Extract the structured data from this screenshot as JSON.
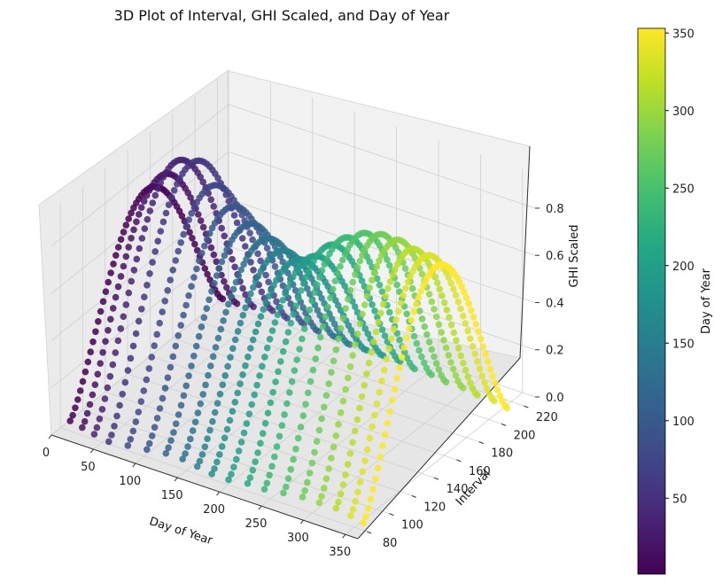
{
  "chart_data": {
    "type": "scatter",
    "title": "3D Plot of Interval, GHI Scaled, and Day of Year",
    "xlabel": "Day of Year",
    "ylabel": "Interval",
    "zlabel": "GHI Scaled",
    "colorbar_label": "Day of Year",
    "colormap": "viridis",
    "grid": true,
    "xlim": [
      0,
      365
    ],
    "ylim": [
      72,
      230
    ],
    "zlim": [
      0,
      0.95
    ],
    "clim": [
      1,
      353
    ],
    "x_ticks": [
      "0",
      "50",
      "100",
      "150",
      "200",
      "250",
      "300",
      "350"
    ],
    "y_ticks": [
      "80",
      "100",
      "120",
      "140",
      "160",
      "180",
      "200",
      "220"
    ],
    "z_ticks": [
      "0.0",
      "0.2",
      "0.4",
      "0.6",
      "0.8"
    ],
    "colorbar_ticks": [
      "50",
      "100",
      "150",
      "200",
      "250",
      "300",
      "350"
    ],
    "series": [
      {
        "day": 1,
        "start": 88,
        "end": 224,
        "peak": 0.72
      },
      {
        "day": 18,
        "start": 86,
        "end": 224,
        "peak": 0.8
      },
      {
        "day": 35,
        "start": 84,
        "end": 226,
        "peak": 0.88
      },
      {
        "day": 55,
        "start": 82,
        "end": 228,
        "peak": 0.9
      },
      {
        "day": 75,
        "start": 84,
        "end": 226,
        "peak": 0.82
      },
      {
        "day": 95,
        "start": 86,
        "end": 226,
        "peak": 0.75
      },
      {
        "day": 115,
        "start": 88,
        "end": 224,
        "peak": 0.7
      },
      {
        "day": 135,
        "start": 88,
        "end": 224,
        "peak": 0.66
      },
      {
        "day": 155,
        "start": 86,
        "end": 222,
        "peak": 0.64
      },
      {
        "day": 175,
        "start": 84,
        "end": 222,
        "peak": 0.63
      },
      {
        "day": 195,
        "start": 84,
        "end": 222,
        "peak": 0.67
      },
      {
        "day": 215,
        "start": 86,
        "end": 222,
        "peak": 0.74
      },
      {
        "day": 235,
        "start": 86,
        "end": 220,
        "peak": 0.8
      },
      {
        "day": 255,
        "start": 88,
        "end": 220,
        "peak": 0.84
      },
      {
        "day": 275,
        "start": 90,
        "end": 218,
        "peak": 0.86
      },
      {
        "day": 295,
        "start": 90,
        "end": 218,
        "peak": 0.86
      },
      {
        "day": 315,
        "start": 90,
        "end": 216,
        "peak": 0.85
      },
      {
        "day": 335,
        "start": 88,
        "end": 216,
        "peak": 0.85
      },
      {
        "day": 353,
        "start": 86,
        "end": 214,
        "peak": 0.84
      }
    ]
  }
}
